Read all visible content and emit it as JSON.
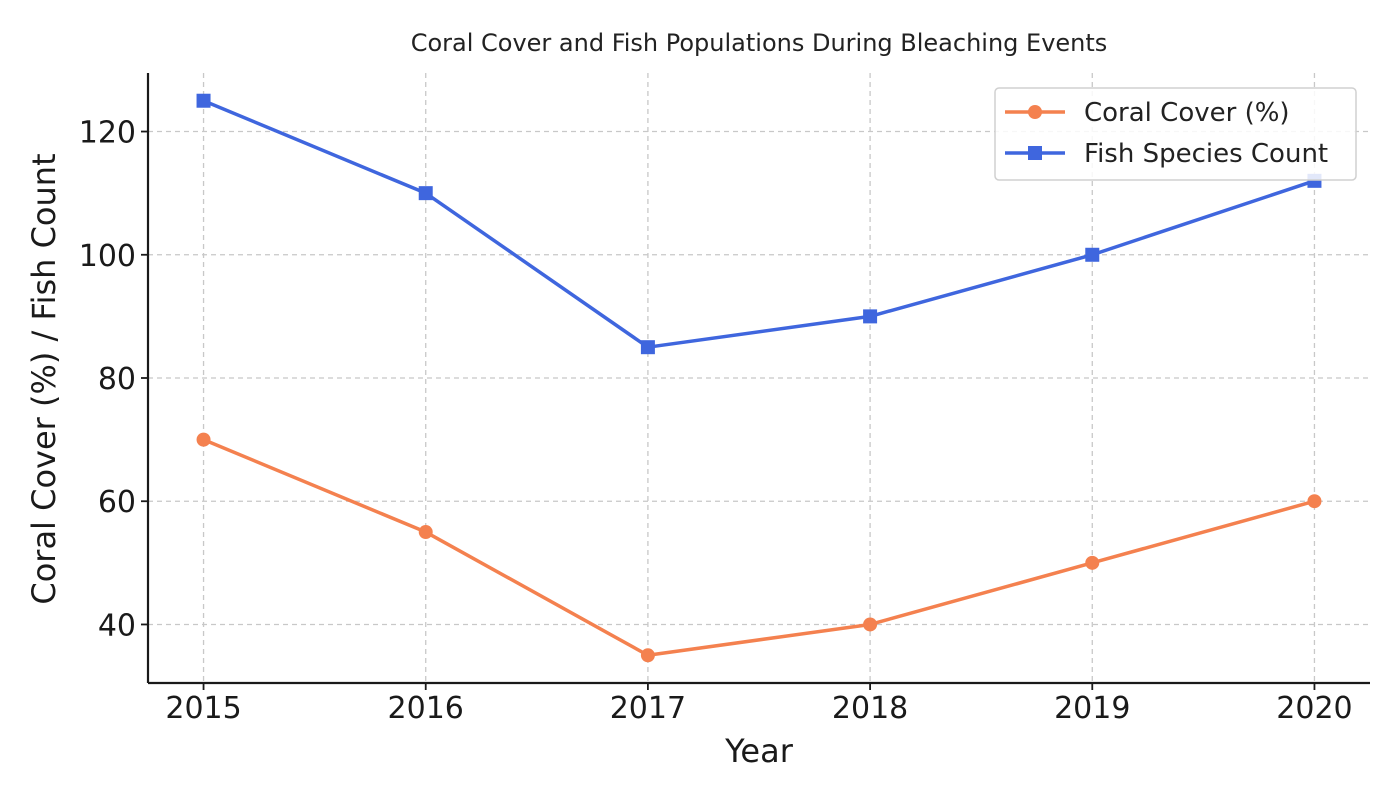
{
  "chart_data": {
    "type": "line",
    "title": "Coral Cover and Fish Populations During Bleaching Events",
    "xlabel": "Year",
    "ylabel": "Coral Cover (%) / Fish Count",
    "x": [
      2015,
      2016,
      2017,
      2018,
      2019,
      2020
    ],
    "x_tick_labels": [
      "2015",
      "2016",
      "2017",
      "2018",
      "2019",
      "2020"
    ],
    "y_ticks": [
      40,
      60,
      80,
      100,
      120
    ],
    "y_tick_labels": [
      "40",
      "60",
      "80",
      "100",
      "120"
    ],
    "ylim": [
      30.5,
      129.5
    ],
    "xlim": [
      2014.75,
      2020.25
    ],
    "grid": true,
    "legend_position": "top-right",
    "series": [
      {
        "name": "Coral Cover (%)",
        "color": "#F4814F",
        "marker": "circle",
        "values": [
          70,
          55,
          35,
          40,
          50,
          60
        ]
      },
      {
        "name": "Fish Species Count",
        "color": "#3F66DE",
        "marker": "square",
        "values": [
          125,
          110,
          85,
          90,
          100,
          112
        ]
      }
    ]
  }
}
